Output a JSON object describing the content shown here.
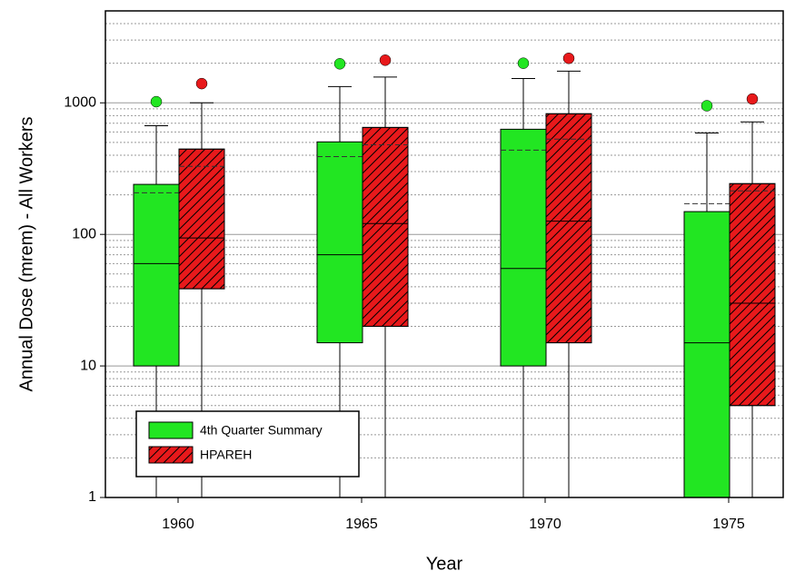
{
  "chart_data": {
    "type": "box",
    "x_label": "Year",
    "y_label": "Annual Dose (mrem) - All Workers",
    "categories": [
      "1960",
      "1965",
      "1970",
      "1975"
    ],
    "ylim": [
      1,
      5000
    ],
    "yticks": [
      1,
      10,
      100,
      1000
    ],
    "log_scale": true,
    "grid": true,
    "minor_grid": true,
    "legend": "lower left",
    "series": [
      {
        "name": "4th Quarter Summary",
        "color": "#22e622",
        "hatch": false,
        "whisker_low": [
          1,
          1,
          1,
          1
        ],
        "q1": [
          10,
          15,
          10,
          1
        ],
        "median": [
          60,
          70,
          55,
          15
        ],
        "mean": [
          207,
          390,
          437,
          171
        ],
        "q3": [
          240,
          505,
          630,
          149
        ],
        "whisker_high": [
          670,
          1330,
          1530,
          590
        ],
        "outliers": [
          1020,
          1980,
          2000,
          950
        ]
      },
      {
        "name": "HPAREH",
        "color": "#e8191b",
        "hatch": true,
        "whisker_low": [
          1,
          1,
          1,
          1
        ],
        "q1": [
          38.6,
          20,
          15,
          5
        ],
        "median": [
          94,
          121,
          126,
          30
        ],
        "mean": [
          329,
          480,
          530,
          214
        ],
        "q3": [
          445,
          650,
          826,
          243
        ],
        "whisker_high": [
          1000,
          1570,
          1740,
          716
        ],
        "outliers": [
          1400,
          2110,
          2180,
          1070
        ]
      }
    ]
  }
}
